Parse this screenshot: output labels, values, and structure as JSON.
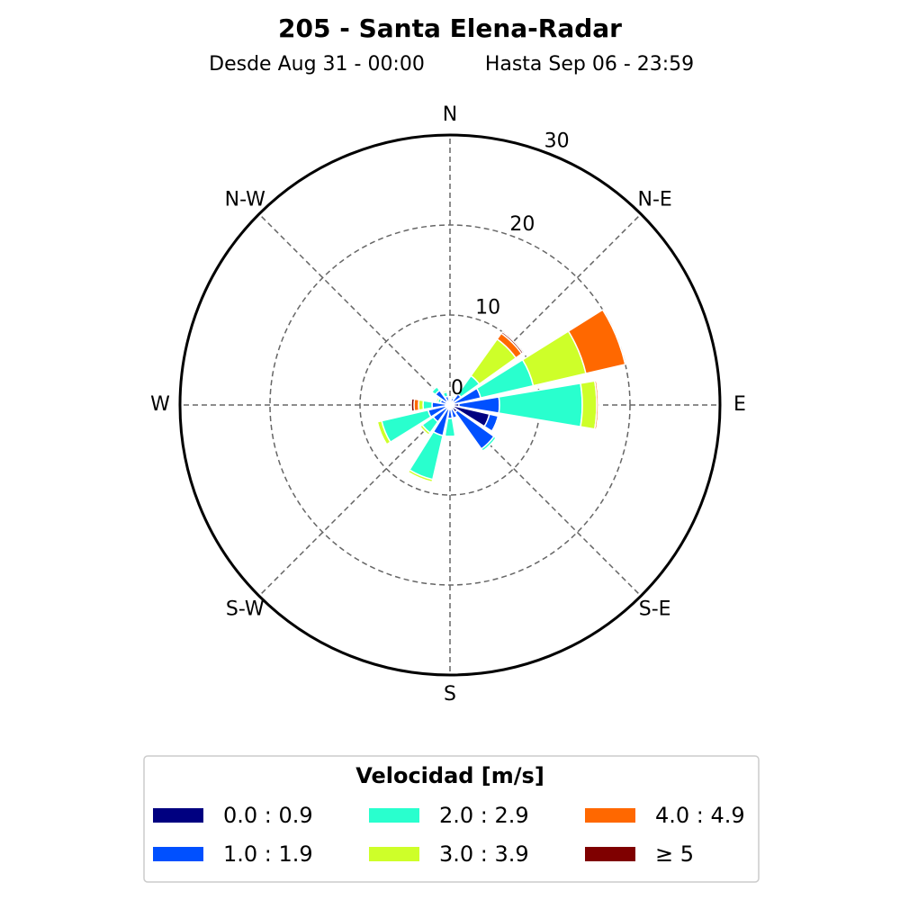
{
  "chart_data": {
    "type": "windrose",
    "title": "205 - Santa Elena-Radar",
    "subtitle": [
      "Desde Aug 31 - 00:00",
      "Hasta Sep 06 - 23:59"
    ],
    "categories": [
      "N",
      null,
      "N-E",
      null,
      "E",
      null,
      "S-E",
      null,
      "S",
      null,
      "S-W",
      null,
      "W",
      null,
      "N-W",
      null
    ],
    "rlim": [
      0,
      30
    ],
    "rticks": [
      0,
      10,
      20,
      30
    ],
    "grid": true,
    "legend_title": "Velocidad [m/s]",
    "series": [
      {
        "name": "0.0 : 0.9",
        "color": "#000080",
        "values": [
          0.2,
          0.3,
          0.5,
          0.5,
          1.0,
          4.5,
          1.0,
          0.3,
          0.5,
          0.5,
          0.3,
          0.5,
          0.5,
          0.3,
          0.5,
          0.3
        ]
      },
      {
        "name": "1.0 : 1.9",
        "color": "#0050ff",
        "values": [
          0.3,
          0.5,
          1.0,
          3.0,
          4.5,
          1.0,
          5.0,
          1.2,
          1.0,
          3.0,
          2.0,
          2.0,
          1.5,
          0.8,
          1.5,
          0.7
        ]
      },
      {
        "name": "2.0 : 2.9",
        "color": "#29ffce",
        "values": [
          0,
          0.2,
          2.5,
          6.0,
          9.2,
          0,
          0.3,
          0,
          2.0,
          5.0,
          1.5,
          5.3,
          1.0,
          0.3,
          0.5,
          0.5
        ]
      },
      {
        "name": "3.0 : 3.9",
        "color": "#ceff29",
        "values": [
          0,
          0,
          5.0,
          6.0,
          1.6,
          0,
          0,
          0,
          0,
          0.3,
          0.3,
          0.5,
          0.5,
          0.2,
          0,
          0.2
        ]
      },
      {
        "name": "4.0 : 4.9",
        "color": "#ff6800",
        "values": [
          0,
          0,
          0.8,
          4.5,
          0.2,
          0,
          0,
          0,
          0,
          0,
          0,
          0,
          0.5,
          0,
          0,
          0
        ]
      },
      {
        "name": "≥  5",
        "color": "#7f0000",
        "values": [
          0,
          0,
          0.2,
          0,
          0,
          0,
          0,
          0,
          0,
          0,
          0,
          0,
          0.3,
          0,
          0,
          0
        ]
      }
    ]
  }
}
